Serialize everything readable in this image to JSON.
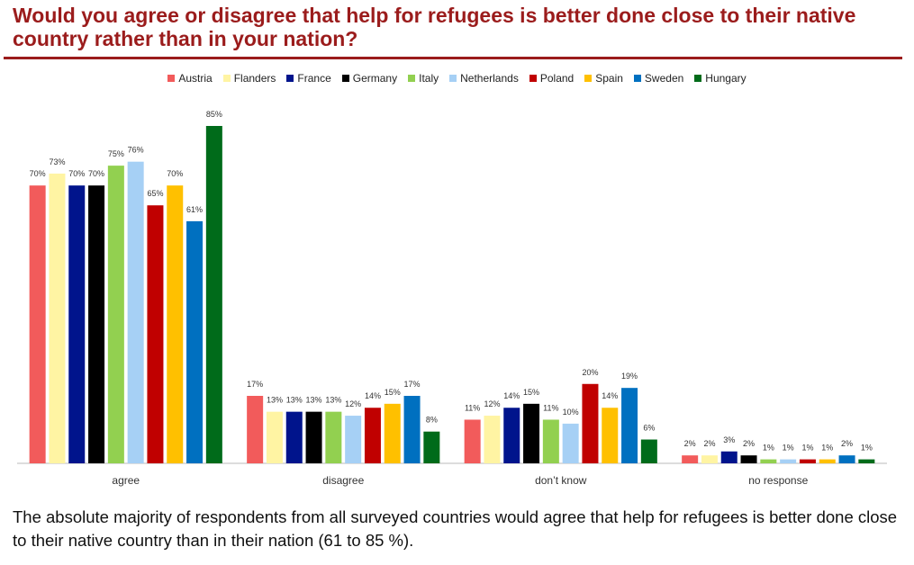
{
  "chart_data": {
    "type": "bar",
    "title": "Would you agree or disagree that help for refugees is better done close to their native country rather than in your nation?",
    "caption": "The absolute majority of respondents from all surveyed countries would agree that help for refugees is better done close to their native country than in their nation (61 to 85 %).",
    "categories": [
      "agree",
      "disagree",
      "don’t know",
      "no response"
    ],
    "series": [
      {
        "name": "Austria",
        "color": "#f25b5b",
        "values": [
          70,
          17,
          11,
          2
        ],
        "value_labels": [
          "70%",
          "17%",
          "11%",
          "2%"
        ]
      },
      {
        "name": "Flanders",
        "color": "#fff4a3",
        "values": [
          73,
          13,
          12,
          2
        ],
        "value_labels": [
          "73%",
          "13%",
          "12%",
          "2%"
        ]
      },
      {
        "name": "France",
        "color": "#00148c",
        "values": [
          70,
          13,
          14,
          3
        ],
        "value_labels": [
          "70%",
          "13%",
          "14%",
          "3%"
        ]
      },
      {
        "name": "Germany",
        "color": "#000000",
        "values": [
          70,
          13,
          15,
          2
        ],
        "value_labels": [
          "70%",
          "13%",
          "15%",
          "2%"
        ]
      },
      {
        "name": "Italy",
        "color": "#92d050",
        "values": [
          75,
          13,
          11,
          1
        ],
        "value_labels": [
          "75%",
          "13%",
          "11%",
          "1%"
        ]
      },
      {
        "name": "Netherlands",
        "color": "#a6d0f5",
        "values": [
          76,
          12,
          10,
          1
        ],
        "value_labels": [
          "76%",
          "12%",
          "10%",
          "1%"
        ]
      },
      {
        "name": "Poland",
        "color": "#c00000",
        "values": [
          65,
          14,
          20,
          1
        ],
        "value_labels": [
          "65%",
          "14%",
          "20%",
          "1%"
        ]
      },
      {
        "name": "Spain",
        "color": "#ffc000",
        "values": [
          70,
          15,
          14,
          1
        ],
        "value_labels": [
          "70%",
          "15%",
          "14%",
          "1%"
        ]
      },
      {
        "name": "Sweden",
        "color": "#0070c0",
        "values": [
          61,
          17,
          19,
          2
        ],
        "value_labels": [
          "61%",
          "17%",
          "19%",
          "2%"
        ]
      },
      {
        "name": "Hungary",
        "color": "#006b1a",
        "values": [
          85,
          8,
          6,
          1
        ],
        "value_labels": [
          "85%",
          "8%",
          "6%",
          "1%"
        ]
      }
    ]
  }
}
